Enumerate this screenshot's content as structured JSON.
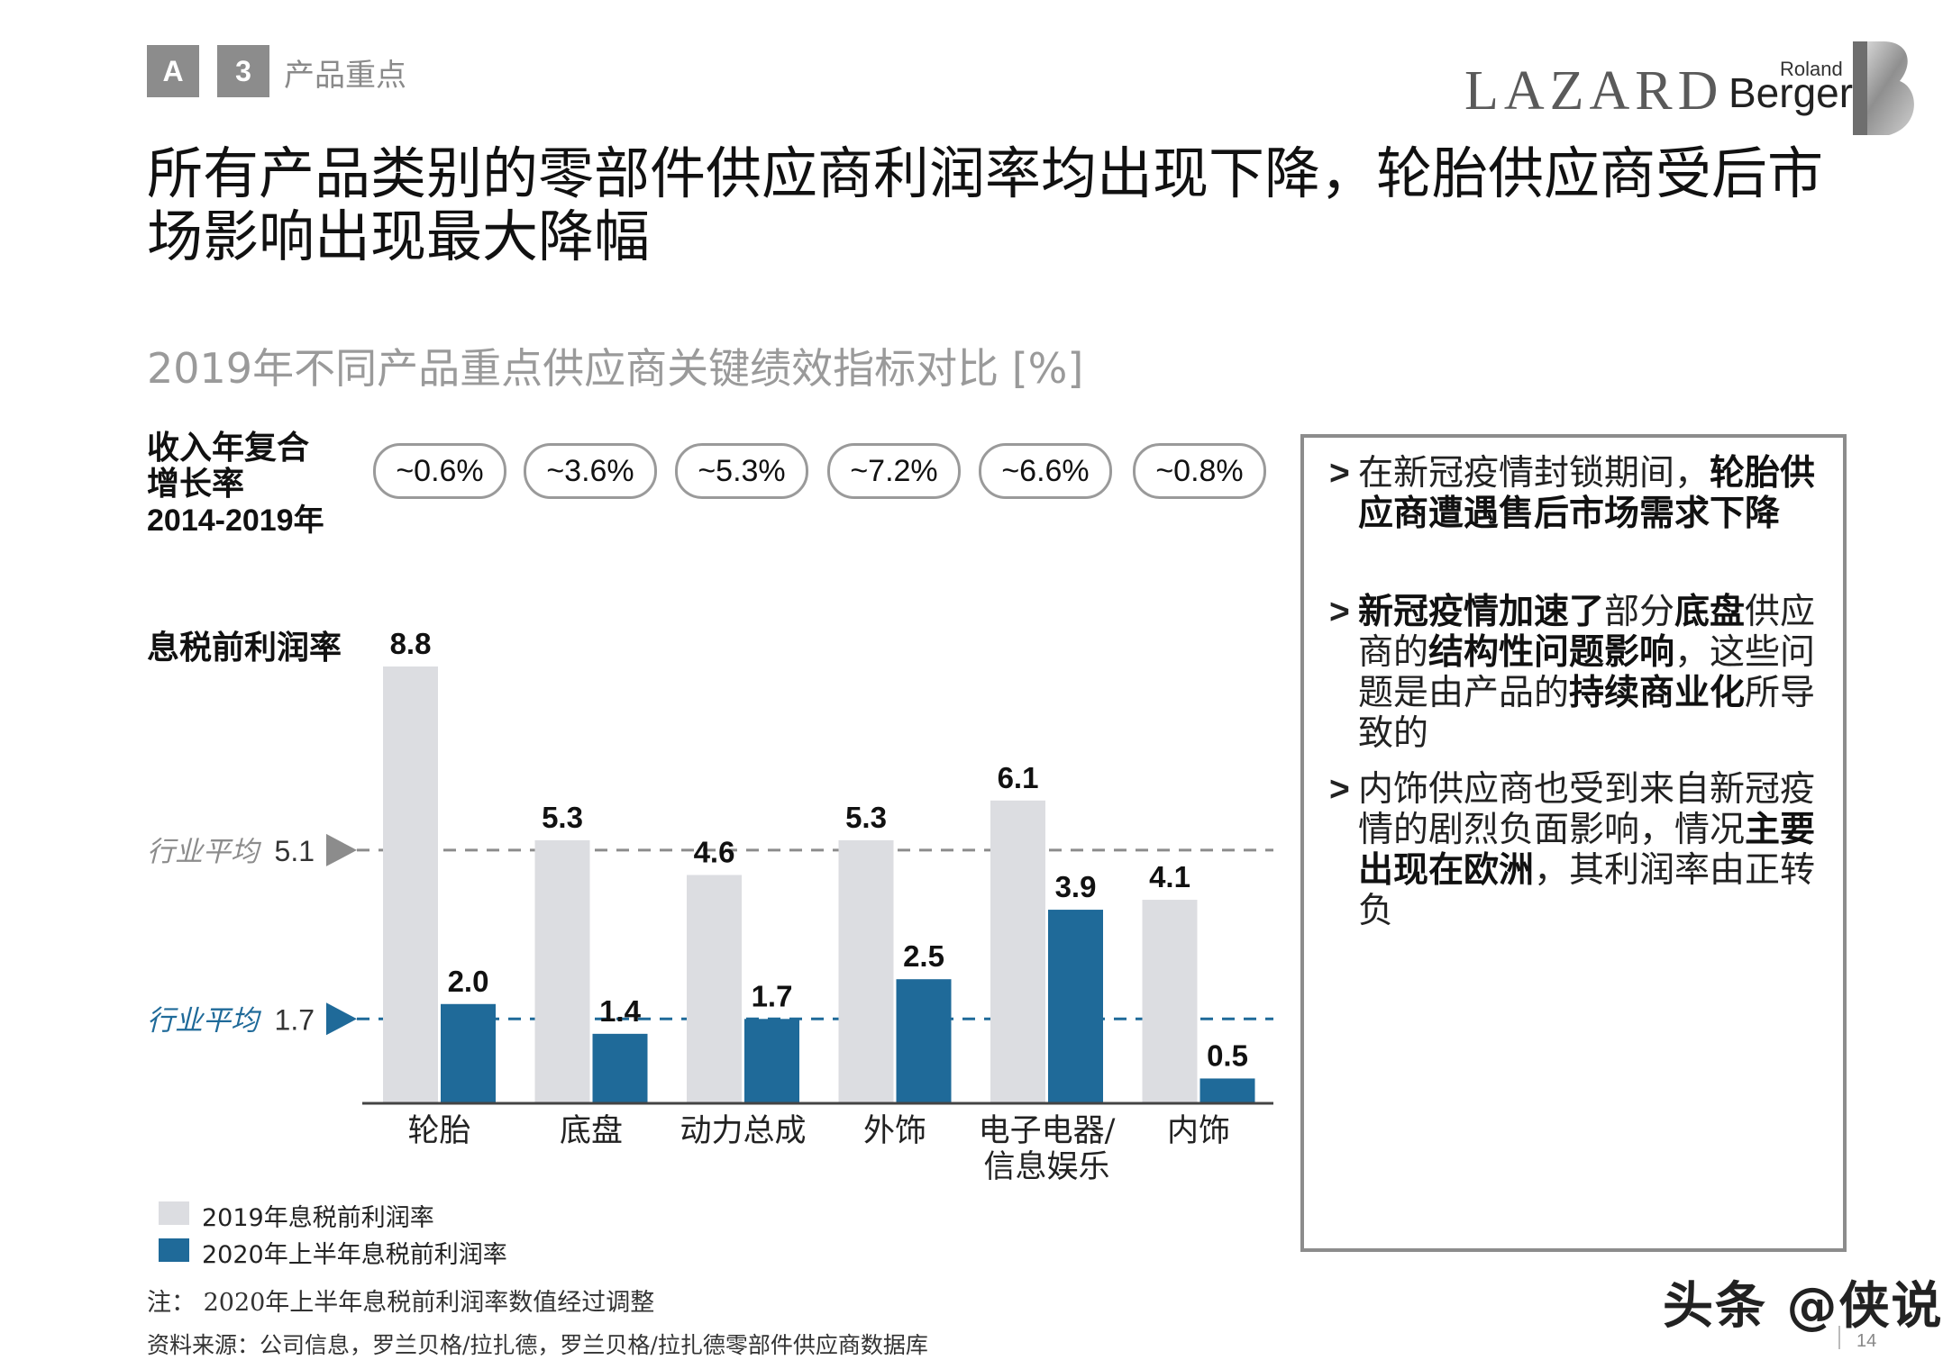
{
  "header": {
    "tag_a": "A",
    "tag_num": "3",
    "section": "产品重点",
    "logo_lazard": "LAZARD",
    "logo_roland": "Roland",
    "logo_berger": "Berger"
  },
  "title": "所有产品类别的零部件供应商利润率均出现下降，轮胎供应商受后市场影响出现最大降幅",
  "subtitle": "2019年不同产品重点供应商关键绩效指标对比 [%]",
  "cagr": {
    "label_line1": "收入年复合",
    "label_line2": "增长率",
    "label_line3": "2014-2019年",
    "values": [
      "~0.6%",
      "~3.6%",
      "~5.3%",
      "~7.2%",
      "~6.6%",
      "~0.8%"
    ]
  },
  "ebit_label": "息税前利润率",
  "chart_data": {
    "type": "bar",
    "categories": [
      "轮胎",
      "底盘",
      "动力总成",
      "外饰",
      "电子电器/信息娱乐",
      "内饰"
    ],
    "category_lines": [
      [
        "轮胎"
      ],
      [
        "底盘"
      ],
      [
        "动力总成"
      ],
      [
        "外饰"
      ],
      [
        "电子电器/",
        "信息娱乐"
      ],
      [
        "内饰"
      ]
    ],
    "series": [
      {
        "name": "2019年息税前利润率",
        "values": [
          8.8,
          5.3,
          4.6,
          5.3,
          6.1,
          4.1
        ],
        "color": "#dcdde1"
      },
      {
        "name": "2020年上半年息税前利润率",
        "values": [
          2.0,
          1.4,
          1.7,
          2.5,
          3.9,
          0.5
        ],
        "color": "#1f6a99"
      }
    ],
    "value_labels": [
      [
        "8.8",
        "5.3",
        "4.6",
        "5.3",
        "6.1",
        "4.1"
      ],
      [
        "2.0",
        "1.4",
        "1.7",
        "2.5",
        "3.9",
        "0.5"
      ]
    ],
    "reference_lines": [
      {
        "label": "行业平均",
        "value": 5.1,
        "value_text": "5.1",
        "color": "#8c8c8c"
      },
      {
        "label": "行业平均",
        "value": 1.7,
        "value_text": "1.7",
        "color": "#1f6a99"
      }
    ],
    "ylim": [
      0,
      8.8
    ],
    "legend": "bottom-left"
  },
  "bullets": [
    [
      {
        "t": "在新冠疫情封锁期间，",
        "b": false
      },
      {
        "t": "轮胎供应商遭遇售后市场需求下降",
        "b": true
      }
    ],
    [
      {
        "t": "新冠疫情加速了",
        "b": true
      },
      {
        "t": "部分",
        "b": false
      },
      {
        "t": "底盘",
        "b": true
      },
      {
        "t": "供应商的",
        "b": false
      },
      {
        "t": "结构性问题影响",
        "b": true
      },
      {
        "t": "，这些问题是由产品的",
        "b": false
      },
      {
        "t": "持续商业化",
        "b": true
      },
      {
        "t": "所导致的",
        "b": false
      }
    ],
    [
      {
        "t": "内饰供应商也受到来自新冠疫情的剧烈负面影响，情况",
        "b": false
      },
      {
        "t": "主要出现在欧洲",
        "b": true
      },
      {
        "t": "，其利润率由正转负",
        "b": false
      }
    ]
  ],
  "notes": {
    "note": "注：  2020年上半年息税前利润率数值经过调整",
    "source": "资料来源：公司信息，罗兰贝格/拉扎德，罗兰贝格/拉扎德零部件供应商数据库"
  },
  "watermark": "头条 @侠说",
  "page_number": "14"
}
